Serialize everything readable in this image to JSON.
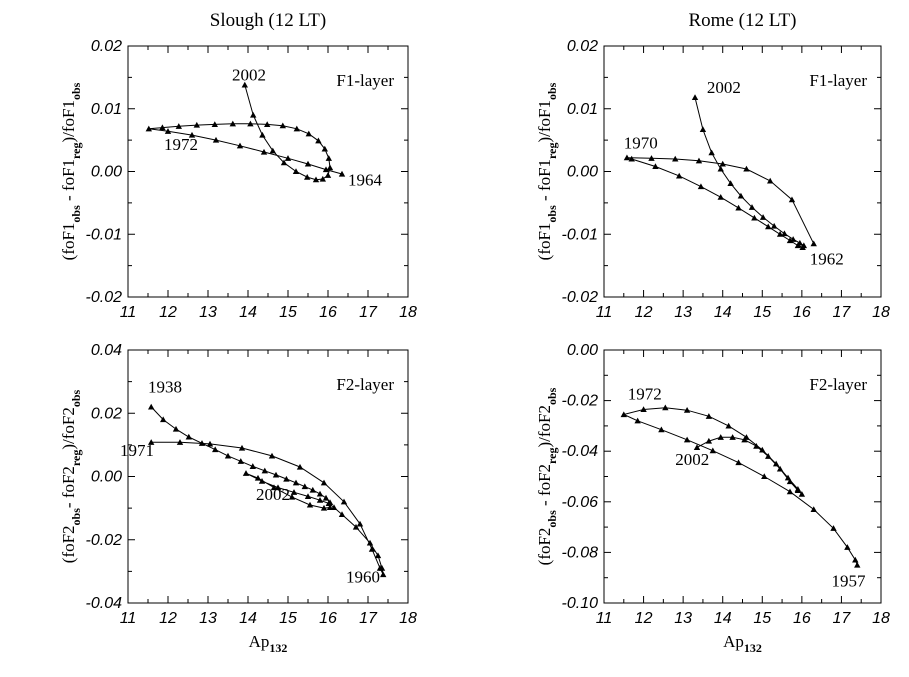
{
  "chart_data": [
    {
      "type": "line",
      "panel_title": "Slough (12 LT)",
      "annotation": "F1-layer",
      "xlim": [
        11,
        18
      ],
      "ylim": [
        -0.02,
        0.02
      ],
      "x_ticks": [
        11,
        12,
        13,
        14,
        15,
        16,
        17,
        18
      ],
      "x_tick_labels": [
        "11",
        "12",
        "13",
        "14",
        "15",
        "16",
        "17",
        "18"
      ],
      "y_ticks": [
        -0.02,
        -0.01,
        0.0,
        0.01,
        0.02
      ],
      "y_tick_labels": [
        "-0.02",
        "-0.01",
        "0.00",
        "0.01",
        "0.02"
      ],
      "ylabel": {
        "a": "(foF1",
        "a_sub": "obs",
        "b": " - foF1",
        "b_sub": "reg",
        "c": ")/foF1",
        "c_sub": "obs"
      },
      "xlabel": {
        "main": "Ap",
        "sub": "132"
      },
      "show_xlabel": false,
      "labels": [
        {
          "text": "2002",
          "x": 13.6,
          "y": 0.0145
        },
        {
          "text": "1972",
          "x": 11.9,
          "y": 0.0034
        },
        {
          "text": "1964",
          "x": 16.5,
          "y": -0.0022
        }
      ],
      "x": [
        13.92,
        14.13,
        14.36,
        14.62,
        14.9,
        15.2,
        15.48,
        15.7,
        15.87,
        16.0,
        16.05,
        16.02,
        15.92,
        15.76,
        15.52,
        15.22,
        14.87,
        14.48,
        14.06,
        13.62,
        13.17,
        12.72,
        12.27,
        11.86,
        11.52,
        12.0,
        12.6,
        13.2,
        13.8,
        14.4,
        15.0,
        15.5,
        15.95,
        16.35
      ],
      "y": [
        0.0138,
        0.009,
        0.0058,
        0.0033,
        0.0014,
        0.0,
        -0.0009,
        -0.0013,
        -0.0012,
        -0.0006,
        0.0006,
        0.0021,
        0.0036,
        0.0049,
        0.006,
        0.0068,
        0.0073,
        0.0075,
        0.0076,
        0.0076,
        0.0075,
        0.0074,
        0.0072,
        0.007,
        0.0068,
        0.0064,
        0.0058,
        0.005,
        0.0041,
        0.0031,
        0.0021,
        0.0012,
        0.0003,
        -0.0004
      ]
    },
    {
      "type": "line",
      "panel_title": "Rome (12 LT)",
      "annotation": "F1-layer",
      "xlim": [
        11,
        18
      ],
      "ylim": [
        -0.02,
        0.02
      ],
      "x_ticks": [
        11,
        12,
        13,
        14,
        15,
        16,
        17,
        18
      ],
      "x_tick_labels": [
        "11",
        "12",
        "13",
        "14",
        "15",
        "16",
        "17",
        "18"
      ],
      "y_ticks": [
        -0.02,
        -0.01,
        0.0,
        0.01,
        0.02
      ],
      "y_tick_labels": [
        "-0.02",
        "-0.01",
        "0.00",
        "0.01",
        "0.02"
      ],
      "ylabel": {
        "a": "(foF1",
        "a_sub": "obs",
        "b": " - foF1",
        "b_sub": "reg",
        "c": ")/foF1",
        "c_sub": "obs"
      },
      "xlabel": {
        "main": "Ap",
        "sub": "132"
      },
      "show_xlabel": false,
      "labels": [
        {
          "text": "2002",
          "x": 13.6,
          "y": 0.0125
        },
        {
          "text": "1970",
          "x": 11.5,
          "y": 0.0037
        },
        {
          "text": "1962",
          "x": 16.2,
          "y": -0.0148
        }
      ],
      "x": [
        13.3,
        13.5,
        13.72,
        13.95,
        14.2,
        14.46,
        14.74,
        15.02,
        15.3,
        15.56,
        15.78,
        15.95,
        16.05,
        16.02,
        15.9,
        15.7,
        15.45,
        15.15,
        14.8,
        14.4,
        13.95,
        13.45,
        12.9,
        12.3,
        11.7,
        11.58,
        12.2,
        12.8,
        13.4,
        14.0,
        14.6,
        15.2,
        15.75,
        16.3
      ],
      "y": [
        0.0118,
        0.0067,
        0.003,
        0.0004,
        -0.0019,
        -0.0039,
        -0.0057,
        -0.0073,
        -0.0087,
        -0.0099,
        -0.0108,
        -0.0114,
        -0.0118,
        -0.0121,
        -0.0118,
        -0.011,
        -0.01,
        -0.0088,
        -0.0074,
        -0.0058,
        -0.0041,
        -0.0024,
        -0.0007,
        0.0008,
        0.002,
        0.0022,
        0.0021,
        0.002,
        0.0017,
        0.0012,
        0.0004,
        -0.0015,
        -0.0045,
        -0.0115
      ]
    },
    {
      "type": "line",
      "panel_title": "",
      "annotation": "F2-layer",
      "xlim": [
        11,
        18
      ],
      "ylim": [
        -0.04,
        0.04
      ],
      "x_ticks": [
        11,
        12,
        13,
        14,
        15,
        16,
        17,
        18
      ],
      "x_tick_labels": [
        "11",
        "12",
        "13",
        "14",
        "15",
        "16",
        "17",
        "18"
      ],
      "y_ticks": [
        -0.04,
        -0.02,
        0.0,
        0.02,
        0.04
      ],
      "y_tick_labels": [
        "-0.04",
        "-0.02",
        "0.00",
        "0.02",
        "0.04"
      ],
      "ylabel": {
        "a": "(foF2",
        "a_sub": "obs",
        "b": "- foF2",
        "b_sub": "reg",
        "c": ")/foF2",
        "c_sub": "obs"
      },
      "xlabel": {
        "main": "Ap",
        "sub": "132"
      },
      "show_xlabel": true,
      "labels": [
        {
          "text": "1938",
          "x": 11.5,
          "y": 0.0265
        },
        {
          "text": "1971",
          "x": 10.8,
          "y": 0.0065
        },
        {
          "text": "2002",
          "x": 14.2,
          "y": -0.0075
        },
        {
          "text": "1960",
          "x": 16.45,
          "y": -0.0335
        }
      ],
      "x": [
        11.58,
        11.88,
        12.2,
        12.52,
        12.85,
        13.18,
        13.5,
        13.82,
        14.12,
        14.42,
        14.7,
        14.96,
        15.2,
        15.42,
        15.62,
        15.8,
        15.95,
        16.05,
        16.05,
        15.9,
        15.55,
        15.1,
        14.65,
        14.25,
        13.95,
        14.35,
        14.75,
        15.15,
        15.5,
        15.8,
        16.02,
        16.15,
        16.35,
        16.7,
        17.05,
        17.25,
        17.35,
        17.38,
        17.3,
        17.1,
        16.8,
        16.4,
        15.9,
        15.3,
        14.6,
        13.85,
        13.05,
        12.3,
        11.58
      ],
      "y": [
        0.022,
        0.018,
        0.015,
        0.0125,
        0.0105,
        0.0085,
        0.0065,
        0.0048,
        0.0032,
        0.0018,
        0.0005,
        -0.0008,
        -0.002,
        -0.0032,
        -0.0043,
        -0.0055,
        -0.0068,
        -0.0082,
        -0.0098,
        -0.01,
        -0.009,
        -0.0065,
        -0.0035,
        -0.0005,
        0.001,
        -0.0015,
        -0.0035,
        -0.005,
        -0.0063,
        -0.0075,
        -0.0085,
        -0.0098,
        -0.012,
        -0.016,
        -0.021,
        -0.025,
        -0.029,
        -0.031,
        -0.029,
        -0.023,
        -0.015,
        -0.008,
        -0.002,
        0.003,
        0.0065,
        0.009,
        0.0103,
        0.0108,
        0.0108
      ]
    },
    {
      "type": "line",
      "panel_title": "",
      "annotation": "F2-layer",
      "xlim": [
        11,
        18
      ],
      "ylim": [
        -0.1,
        0.0
      ],
      "x_ticks": [
        11,
        12,
        13,
        14,
        15,
        16,
        17,
        18
      ],
      "x_tick_labels": [
        "11",
        "12",
        "13",
        "14",
        "15",
        "16",
        "17",
        "18"
      ],
      "y_ticks": [
        -0.1,
        -0.08,
        -0.06,
        -0.04,
        -0.02,
        0.0
      ],
      "y_tick_labels": [
        "-0.10",
        "-0.08",
        "-0.06",
        "-0.04",
        "-0.02",
        "0.00"
      ],
      "ylabel": {
        "a": "(foF2",
        "a_sub": "obs",
        "b": " - foF2",
        "b_sub": "reg",
        "c": ")/foF2",
        "c_sub": "obs"
      },
      "xlabel": {
        "main": "Ap",
        "sub": "132"
      },
      "show_xlabel": true,
      "labels": [
        {
          "text": "1972",
          "x": 11.6,
          "y": -0.0195
        },
        {
          "text": "2002",
          "x": 12.8,
          "y": -0.0455
        },
        {
          "text": "1957",
          "x": 16.75,
          "y": -0.0935
        }
      ],
      "x": [
        13.35,
        13.65,
        13.95,
        14.25,
        14.55,
        14.85,
        15.15,
        15.45,
        15.7,
        15.9,
        16.0,
        15.9,
        15.65,
        15.35,
        15.0,
        14.6,
        14.15,
        13.65,
        13.1,
        12.55,
        12.0,
        11.5,
        11.85,
        12.45,
        13.1,
        13.75,
        14.4,
        15.05,
        15.7,
        16.3,
        16.8,
        17.15,
        17.35,
        17.4
      ],
      "y": [
        -0.0385,
        -0.036,
        -0.0345,
        -0.0345,
        -0.0355,
        -0.038,
        -0.042,
        -0.047,
        -0.052,
        -0.0555,
        -0.057,
        -0.055,
        -0.0505,
        -0.045,
        -0.0395,
        -0.0345,
        -0.03,
        -0.0262,
        -0.0238,
        -0.0228,
        -0.0235,
        -0.0255,
        -0.028,
        -0.0315,
        -0.0355,
        -0.0398,
        -0.0445,
        -0.05,
        -0.056,
        -0.063,
        -0.0705,
        -0.078,
        -0.083,
        -0.085
      ]
    }
  ]
}
